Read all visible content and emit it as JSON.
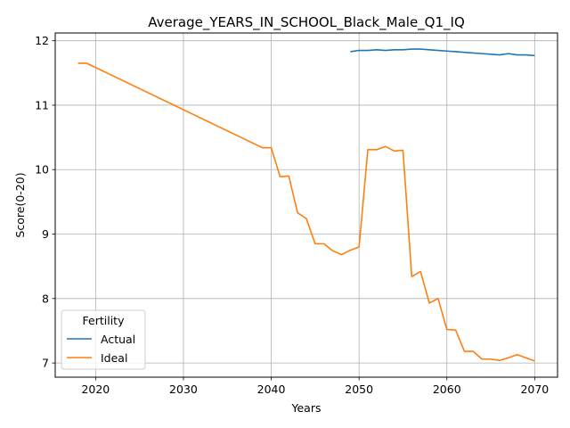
{
  "chart_data": {
    "type": "line",
    "title": "Average_YEARS_IN_SCHOOL_Black_Male_Q1_IQ",
    "xlabel": "Years",
    "ylabel": "Score(0-20)",
    "xlim": [
      2015.4,
      2072.6
    ],
    "ylim": [
      6.78,
      12.12
    ],
    "xticks": [
      2020,
      2030,
      2040,
      2050,
      2060,
      2070
    ],
    "yticks": [
      7,
      8,
      9,
      10,
      11,
      12
    ],
    "grid": true,
    "legend": {
      "title": "Fertility",
      "placement": "lower-left"
    },
    "series": [
      {
        "name": "Actual",
        "color": "#1f77b4",
        "x": [
          2049,
          2050,
          2051,
          2052,
          2053,
          2054,
          2055,
          2056,
          2057,
          2058,
          2059,
          2060,
          2061,
          2062,
          2063,
          2064,
          2065,
          2066,
          2067,
          2068,
          2069,
          2070
        ],
        "y": [
          11.83,
          11.85,
          11.85,
          11.86,
          11.85,
          11.86,
          11.86,
          11.87,
          11.87,
          11.86,
          11.85,
          11.84,
          11.83,
          11.82,
          11.81,
          11.8,
          11.79,
          11.78,
          11.8,
          11.78,
          11.78,
          11.77
        ]
      },
      {
        "name": "Ideal",
        "color": "#ff7f0e",
        "x": [
          2018,
          2019,
          2039,
          2040,
          2041,
          2042,
          2043,
          2044,
          2045,
          2046,
          2047,
          2048,
          2049,
          2050,
          2051,
          2052,
          2053,
          2054,
          2055,
          2056,
          2057,
          2058,
          2059,
          2060,
          2061,
          2062,
          2063,
          2064,
          2065,
          2066,
          2067,
          2068,
          2069,
          2070
        ],
        "y": [
          11.65,
          11.65,
          10.34,
          10.34,
          9.89,
          9.9,
          9.33,
          9.24,
          8.85,
          8.85,
          8.74,
          8.68,
          8.75,
          8.8,
          10.31,
          10.31,
          10.36,
          10.29,
          10.3,
          8.34,
          8.42,
          7.93,
          8.0,
          7.52,
          7.51,
          7.18,
          7.18,
          7.06,
          7.06,
          7.04,
          7.08,
          7.13,
          7.08,
          7.03
        ]
      }
    ]
  }
}
